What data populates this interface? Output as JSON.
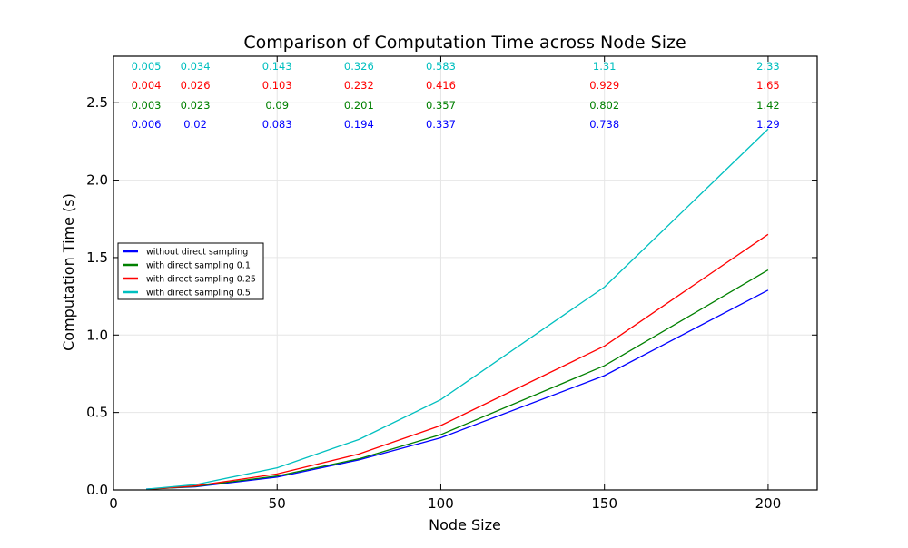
{
  "chart_data": {
    "type": "line",
    "title": "Comparison of Computation Time across Node Size",
    "xlabel": "Node Size",
    "ylabel": "Computation Time (s)",
    "xlim": [
      0,
      215
    ],
    "ylim": [
      0,
      2.8
    ],
    "xticks": [
      0,
      50,
      100,
      150,
      200
    ],
    "yticks": [
      0.0,
      0.5,
      1.0,
      1.5,
      2.0,
      2.5
    ],
    "grid": true,
    "legend_position": "center-left",
    "x": [
      10,
      25,
      50,
      75,
      100,
      150,
      200
    ],
    "series": [
      {
        "name": "without direct sampling",
        "color": "#0000ff",
        "values": [
          0.006,
          0.02,
          0.083,
          0.194,
          0.337,
          0.738,
          1.29
        ],
        "labels": [
          "0.006",
          "0.02",
          "0.083",
          "0.194",
          "0.337",
          "0.738",
          "1.29"
        ]
      },
      {
        "name": "with direct sampling 0.1",
        "color": "#008000",
        "values": [
          0.003,
          0.023,
          0.09,
          0.201,
          0.357,
          0.802,
          1.42
        ],
        "labels": [
          "0.003",
          "0.023",
          "0.09",
          "0.201",
          "0.357",
          "0.802",
          "1.42"
        ]
      },
      {
        "name": "with direct sampling 0.25",
        "color": "#ff0000",
        "values": [
          0.004,
          0.026,
          0.103,
          0.232,
          0.416,
          0.929,
          1.65
        ],
        "labels": [
          "0.004",
          "0.026",
          "0.103",
          "0.232",
          "0.416",
          "0.929",
          "1.65"
        ]
      },
      {
        "name": "with direct sampling 0.5",
        "color": "#00bfbf",
        "values": [
          0.005,
          0.034,
          0.143,
          0.326,
          0.583,
          1.31,
          2.33
        ],
        "labels": [
          "0.005",
          "0.034",
          "0.143",
          "0.326",
          "0.583",
          "1.31",
          "2.33"
        ]
      }
    ]
  }
}
